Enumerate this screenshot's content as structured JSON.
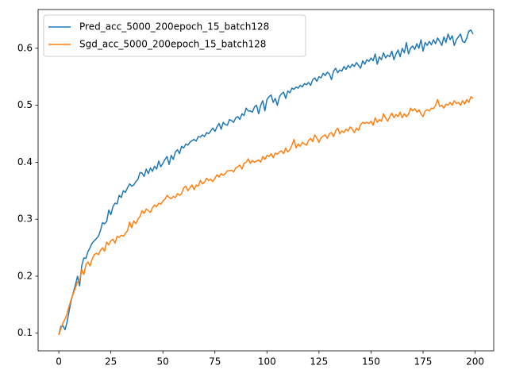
{
  "chart_data": {
    "type": "line",
    "legend": "upper left",
    "grid": false,
    "xlim": [
      -9.95,
      208.95
    ],
    "ylim": [
      0.069,
      0.668
    ],
    "xticks": [
      0,
      25,
      50,
      75,
      100,
      125,
      150,
      175,
      200
    ],
    "yticks": [
      0.1,
      0.2,
      0.3,
      0.4,
      0.5,
      0.6
    ],
    "x": [
      0,
      1,
      2,
      3,
      4,
      5,
      6,
      7,
      8,
      9,
      10,
      11,
      12,
      13,
      14,
      15,
      16,
      17,
      18,
      19,
      20,
      21,
      22,
      23,
      24,
      25,
      26,
      27,
      28,
      29,
      30,
      31,
      32,
      33,
      34,
      35,
      36,
      37,
      38,
      39,
      40,
      41,
      42,
      43,
      44,
      45,
      46,
      47,
      48,
      49,
      50,
      51,
      52,
      53,
      54,
      55,
      56,
      57,
      58,
      59,
      60,
      61,
      62,
      63,
      64,
      65,
      66,
      67,
      68,
      69,
      70,
      71,
      72,
      73,
      74,
      75,
      76,
      77,
      78,
      79,
      80,
      81,
      82,
      83,
      84,
      85,
      86,
      87,
      88,
      89,
      90,
      91,
      92,
      93,
      94,
      95,
      96,
      97,
      98,
      99,
      100,
      101,
      102,
      103,
      104,
      105,
      106,
      107,
      108,
      109,
      110,
      111,
      112,
      113,
      114,
      115,
      116,
      117,
      118,
      119,
      120,
      121,
      122,
      123,
      124,
      125,
      126,
      127,
      128,
      129,
      130,
      131,
      132,
      133,
      134,
      135,
      136,
      137,
      138,
      139,
      140,
      141,
      142,
      143,
      144,
      145,
      146,
      147,
      148,
      149,
      150,
      151,
      152,
      153,
      154,
      155,
      156,
      157,
      158,
      159,
      160,
      161,
      162,
      163,
      164,
      165,
      166,
      167,
      168,
      169,
      170,
      171,
      172,
      173,
      174,
      175,
      176,
      177,
      178,
      179,
      180,
      181,
      182,
      183,
      184,
      185,
      186,
      187,
      188,
      189,
      190,
      191,
      192,
      193,
      194,
      195,
      196,
      197,
      198,
      199
    ],
    "series": [
      {
        "name": "Pred_acc_5000_200epoch_15_batch128",
        "color": "#1f77b4",
        "values": [
          0.097,
          0.112,
          0.113,
          0.106,
          0.12,
          0.14,
          0.158,
          0.172,
          0.185,
          0.2,
          0.183,
          0.218,
          0.232,
          0.231,
          0.243,
          0.25,
          0.258,
          0.262,
          0.266,
          0.27,
          0.28,
          0.294,
          0.292,
          0.296,
          0.316,
          0.308,
          0.322,
          0.328,
          0.327,
          0.342,
          0.338,
          0.35,
          0.347,
          0.355,
          0.362,
          0.358,
          0.36,
          0.366,
          0.37,
          0.382,
          0.381,
          0.375,
          0.388,
          0.38,
          0.39,
          0.384,
          0.393,
          0.388,
          0.402,
          0.392,
          0.398,
          0.405,
          0.41,
          0.396,
          0.412,
          0.405,
          0.418,
          0.422,
          0.415,
          0.428,
          0.425,
          0.432,
          0.43,
          0.435,
          0.438,
          0.44,
          0.437,
          0.445,
          0.444,
          0.448,
          0.445,
          0.452,
          0.45,
          0.455,
          0.46,
          0.454,
          0.462,
          0.468,
          0.458,
          0.47,
          0.466,
          0.465,
          0.475,
          0.473,
          0.47,
          0.478,
          0.48,
          0.475,
          0.485,
          0.482,
          0.495,
          0.49,
          0.49,
          0.488,
          0.497,
          0.5,
          0.485,
          0.5,
          0.508,
          0.49,
          0.51,
          0.515,
          0.518,
          0.505,
          0.512,
          0.5,
          0.515,
          0.52,
          0.523,
          0.512,
          0.525,
          0.522,
          0.53,
          0.528,
          0.532,
          0.53,
          0.535,
          0.532,
          0.538,
          0.536,
          0.54,
          0.535,
          0.545,
          0.548,
          0.542,
          0.55,
          0.548,
          0.556,
          0.552,
          0.558,
          0.555,
          0.545,
          0.56,
          0.565,
          0.557,
          0.562,
          0.56,
          0.568,
          0.563,
          0.57,
          0.566,
          0.572,
          0.568,
          0.575,
          0.57,
          0.565,
          0.578,
          0.572,
          0.58,
          0.577,
          0.583,
          0.578,
          0.59,
          0.572,
          0.585,
          0.58,
          0.592,
          0.583,
          0.588,
          0.585,
          0.595,
          0.58,
          0.59,
          0.597,
          0.585,
          0.6,
          0.592,
          0.61,
          0.59,
          0.6,
          0.604,
          0.598,
          0.608,
          0.6,
          0.615,
          0.595,
          0.61,
          0.605,
          0.612,
          0.606,
          0.615,
          0.608,
          0.618,
          0.612,
          0.605,
          0.62,
          0.61,
          0.625,
          0.615,
          0.622,
          0.605,
          0.615,
          0.62,
          0.625,
          0.612,
          0.61,
          0.618,
          0.63,
          0.632,
          0.625
        ]
      },
      {
        "name": "Sgd_acc_5000_200epoch_15_batch128",
        "color": "#ff7f0e",
        "values": [
          0.097,
          0.108,
          0.118,
          0.125,
          0.135,
          0.148,
          0.16,
          0.17,
          0.18,
          0.19,
          0.192,
          0.212,
          0.203,
          0.22,
          0.225,
          0.218,
          0.23,
          0.238,
          0.24,
          0.238,
          0.245,
          0.25,
          0.244,
          0.26,
          0.255,
          0.262,
          0.265,
          0.258,
          0.27,
          0.268,
          0.272,
          0.27,
          0.275,
          0.28,
          0.295,
          0.285,
          0.297,
          0.292,
          0.3,
          0.305,
          0.315,
          0.31,
          0.318,
          0.315,
          0.312,
          0.32,
          0.325,
          0.322,
          0.328,
          0.326,
          0.332,
          0.335,
          0.342,
          0.338,
          0.336,
          0.34,
          0.338,
          0.345,
          0.342,
          0.345,
          0.355,
          0.358,
          0.35,
          0.355,
          0.36,
          0.352,
          0.36,
          0.358,
          0.368,
          0.362,
          0.365,
          0.372,
          0.368,
          0.37,
          0.366,
          0.372,
          0.378,
          0.374,
          0.38,
          0.377,
          0.38,
          0.385,
          0.385,
          0.386,
          0.383,
          0.39,
          0.392,
          0.395,
          0.388,
          0.398,
          0.4,
          0.406,
          0.398,
          0.403,
          0.4,
          0.402,
          0.404,
          0.4,
          0.41,
          0.405,
          0.412,
          0.41,
          0.415,
          0.408,
          0.416,
          0.414,
          0.418,
          0.42,
          0.415,
          0.425,
          0.418,
          0.422,
          0.43,
          0.44,
          0.425,
          0.432,
          0.428,
          0.435,
          0.432,
          0.43,
          0.438,
          0.442,
          0.436,
          0.448,
          0.442,
          0.435,
          0.443,
          0.446,
          0.448,
          0.442,
          0.45,
          0.452,
          0.445,
          0.455,
          0.46,
          0.45,
          0.455,
          0.452,
          0.458,
          0.455,
          0.462,
          0.458,
          0.452,
          0.46,
          0.456,
          0.466,
          0.47,
          0.468,
          0.47,
          0.468,
          0.472,
          0.465,
          0.478,
          0.47,
          0.475,
          0.472,
          0.485,
          0.478,
          0.472,
          0.48,
          0.486,
          0.478,
          0.484,
          0.48,
          0.488,
          0.478,
          0.485,
          0.48,
          0.484,
          0.495,
          0.49,
          0.494,
          0.488,
          0.492,
          0.485,
          0.48,
          0.49,
          0.492,
          0.49,
          0.495,
          0.494,
          0.5,
          0.51,
          0.498,
          0.5,
          0.495,
          0.502,
          0.5,
          0.505,
          0.5,
          0.508,
          0.503,
          0.505,
          0.5,
          0.508,
          0.502,
          0.51,
          0.505,
          0.515,
          0.512
        ]
      }
    ]
  }
}
